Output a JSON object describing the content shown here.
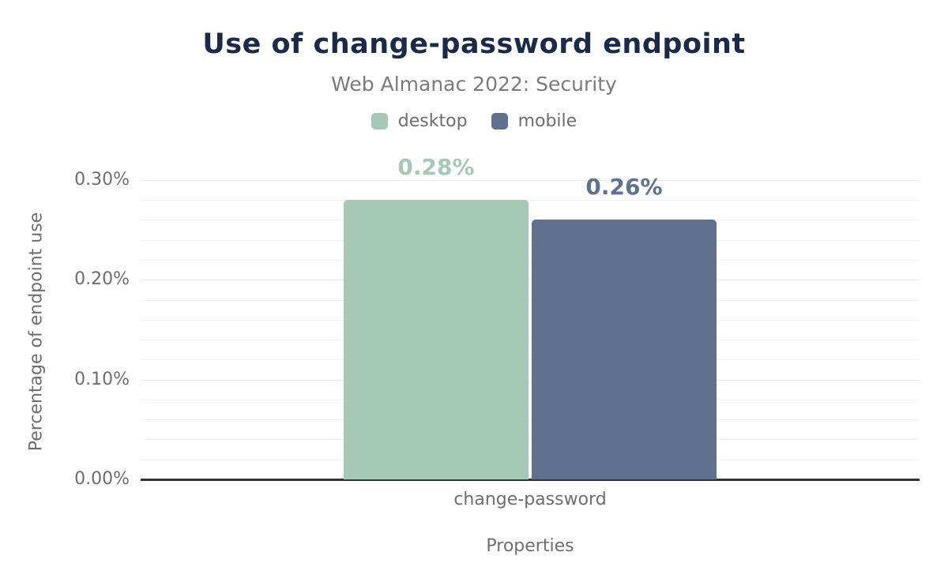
{
  "chart_data": {
    "type": "bar",
    "title": "Use of change-password endpoint",
    "subtitle": "Web Almanac 2022: Security",
    "xlabel": "Properties",
    "ylabel": "Percentage of endpoint use",
    "categories": [
      "change-password"
    ],
    "series": [
      {
        "name": "desktop",
        "values": [
          0.28
        ],
        "data_labels": [
          "0.28%"
        ],
        "color": "#a6c9b7"
      },
      {
        "name": "mobile",
        "values": [
          0.26
        ],
        "data_labels": [
          "0.26%"
        ],
        "color": "#5f718e"
      }
    ],
    "ylim": [
      0,
      0.33
    ],
    "yticks": [
      {
        "value": 0.3,
        "label": "0.30%"
      },
      {
        "value": 0.2,
        "label": "0.20%"
      },
      {
        "value": 0.1,
        "label": "0.10%"
      },
      {
        "value": 0.0,
        "label": "0.00%"
      }
    ],
    "minor_tick_step": 0.02,
    "grid": true,
    "legend_position": "top"
  },
  "colors": {
    "title": "#1b2a49",
    "subtitle": "#7b7b7b",
    "axis_text": "#6e6e6e",
    "axis_line": "#303438",
    "grid_minor": "#f3f3f3",
    "grid_major": "#eaeaea",
    "background": "#ffffff"
  }
}
